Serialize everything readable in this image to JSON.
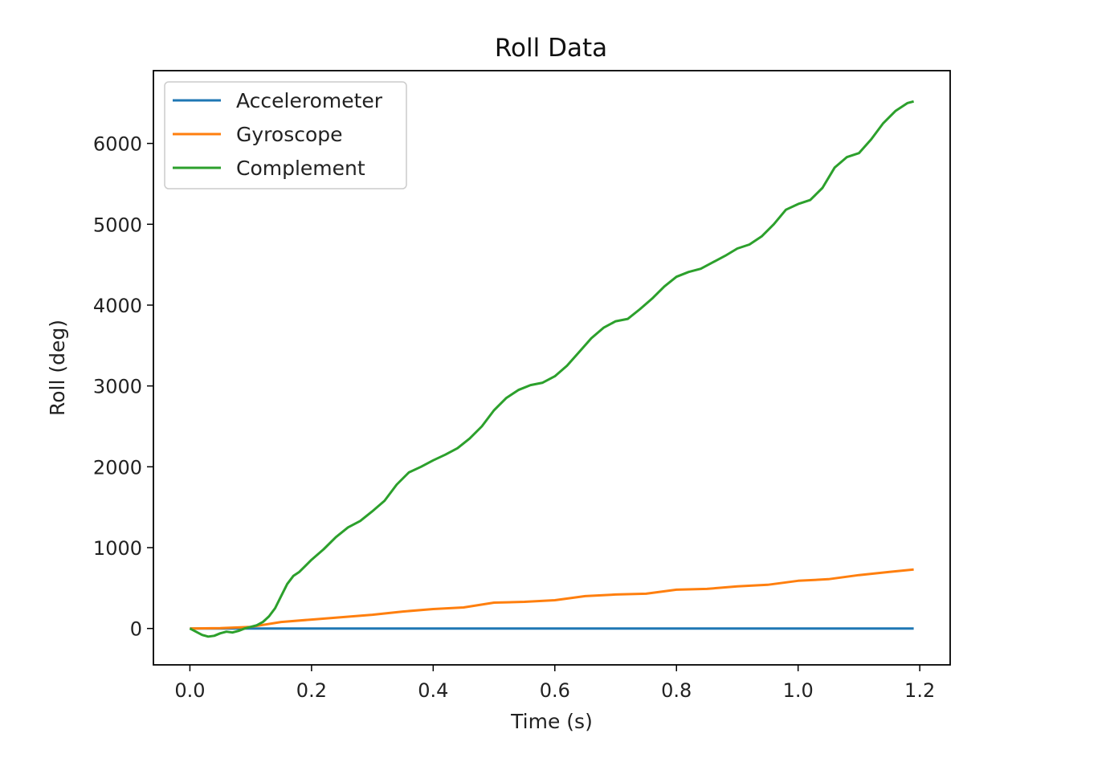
{
  "chart_data": {
    "type": "line",
    "title": "Roll Data",
    "xlabel": "Time (s)",
    "ylabel": "Roll (deg)",
    "xlim": [
      -0.06,
      1.25
    ],
    "ylim": [
      -450,
      6900
    ],
    "x_ticks": [
      0.0,
      0.2,
      0.4,
      0.6,
      0.8,
      1.0,
      1.2
    ],
    "x_tick_labels": [
      "0.0",
      "0.2",
      "0.4",
      "0.6",
      "0.8",
      "1.0",
      "1.2"
    ],
    "y_ticks": [
      0,
      1000,
      2000,
      3000,
      4000,
      5000,
      6000
    ],
    "y_tick_labels": [
      "0",
      "1000",
      "2000",
      "3000",
      "4000",
      "5000",
      "6000"
    ],
    "grid": false,
    "legend_position": "top-left",
    "series": [
      {
        "name": "Accelerometer",
        "color": "#1f77b4",
        "x": [
          0.0,
          0.1,
          0.2,
          0.3,
          0.4,
          0.5,
          0.6,
          0.7,
          0.8,
          0.9,
          1.0,
          1.1,
          1.19
        ],
        "y": [
          0,
          0,
          0,
          0,
          0,
          0,
          0,
          0,
          0,
          0,
          0,
          0,
          0
        ]
      },
      {
        "name": "Gyroscope",
        "color": "#ff7f0e",
        "x": [
          0.0,
          0.05,
          0.1,
          0.15,
          0.2,
          0.25,
          0.3,
          0.35,
          0.4,
          0.45,
          0.5,
          0.55,
          0.6,
          0.65,
          0.7,
          0.75,
          0.8,
          0.85,
          0.9,
          0.95,
          1.0,
          1.05,
          1.1,
          1.15,
          1.19
        ],
        "y": [
          0,
          5,
          20,
          80,
          110,
          140,
          170,
          210,
          240,
          260,
          320,
          330,
          350,
          400,
          420,
          430,
          480,
          490,
          520,
          540,
          590,
          610,
          660,
          700,
          730
        ]
      },
      {
        "name": "Complement",
        "color": "#2ca02c",
        "x": [
          0.0,
          0.01,
          0.02,
          0.03,
          0.04,
          0.05,
          0.06,
          0.07,
          0.08,
          0.09,
          0.1,
          0.11,
          0.12,
          0.13,
          0.14,
          0.15,
          0.16,
          0.17,
          0.18,
          0.2,
          0.22,
          0.24,
          0.26,
          0.28,
          0.3,
          0.32,
          0.34,
          0.36,
          0.38,
          0.4,
          0.42,
          0.44,
          0.46,
          0.48,
          0.5,
          0.52,
          0.54,
          0.56,
          0.58,
          0.6,
          0.62,
          0.64,
          0.66,
          0.68,
          0.7,
          0.72,
          0.74,
          0.76,
          0.78,
          0.8,
          0.82,
          0.84,
          0.86,
          0.88,
          0.9,
          0.92,
          0.94,
          0.96,
          0.98,
          1.0,
          1.02,
          1.04,
          1.06,
          1.08,
          1.1,
          1.12,
          1.14,
          1.16,
          1.18,
          1.19
        ],
        "y": [
          0,
          -40,
          -80,
          -100,
          -90,
          -60,
          -40,
          -50,
          -30,
          0,
          20,
          40,
          80,
          150,
          250,
          400,
          550,
          650,
          700,
          850,
          980,
          1130,
          1250,
          1330,
          1450,
          1580,
          1780,
          1930,
          2000,
          2080,
          2150,
          2230,
          2350,
          2500,
          2700,
          2850,
          2950,
          3010,
          3040,
          3120,
          3250,
          3420,
          3590,
          3720,
          3800,
          3830,
          3950,
          4080,
          4230,
          4350,
          4410,
          4450,
          4530,
          4610,
          4700,
          4750,
          4850,
          5000,
          5180,
          5250,
          5300,
          5450,
          5700,
          5830,
          5880,
          6050,
          6250,
          6400,
          6500,
          6520
        ]
      }
    ]
  }
}
